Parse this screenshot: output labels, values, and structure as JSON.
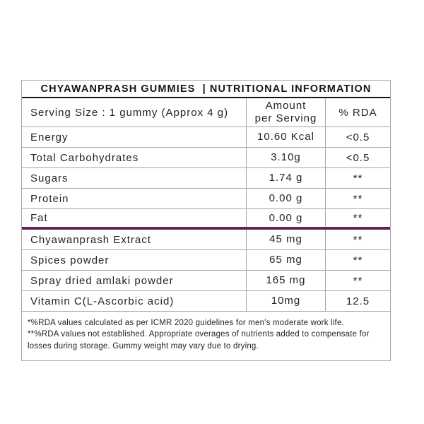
{
  "title": "CHYAWANPRASH GUMMIES  | NUTRITIONAL INFORMATION",
  "colors": {
    "divider_accent": "#66215a",
    "grid_border": "#a6a6a6",
    "title_underline": "#141414",
    "text": "#242424",
    "background": "#ffffff"
  },
  "header": {
    "serving_size": "Serving Size : 1 gummy (Approx 4 g)",
    "amount": "Amount\nper Serving",
    "rda": "% RDA"
  },
  "rows": [
    {
      "label": "Energy",
      "amount": "10.60 Kcal",
      "rda": "<0.5"
    },
    {
      "label": "Total Carbohydrates",
      "amount": "3.10g",
      "rda": "<0.5"
    },
    {
      "label": "Sugars",
      "amount": "1.74 g",
      "rda": "**"
    },
    {
      "label": "Protein",
      "amount": "0.00 g",
      "rda": "**"
    },
    {
      "label": "Fat",
      "amount": "0.00 g",
      "rda": "**"
    },
    {
      "label": "Chyawanprash Extract",
      "amount": "45 mg",
      "rda": "**"
    },
    {
      "label": "Spices powder",
      "amount": "65 mg",
      "rda": "**"
    },
    {
      "label": "Spray dried amlaki powder",
      "amount": "165 mg",
      "rda": "**"
    },
    {
      "label": "Vitamin C(L-Ascorbic acid)",
      "amount": "10mg",
      "rda": "12.5"
    }
  ],
  "notes": [
    "*%RDA values calculated as per ICMR 2020 guidelines for men's moderate work life.",
    "**%RDA values not established. Appropriate overages of nutrients added to compensate for",
    "losses during storage. Gummy weight may vary due to drying."
  ]
}
